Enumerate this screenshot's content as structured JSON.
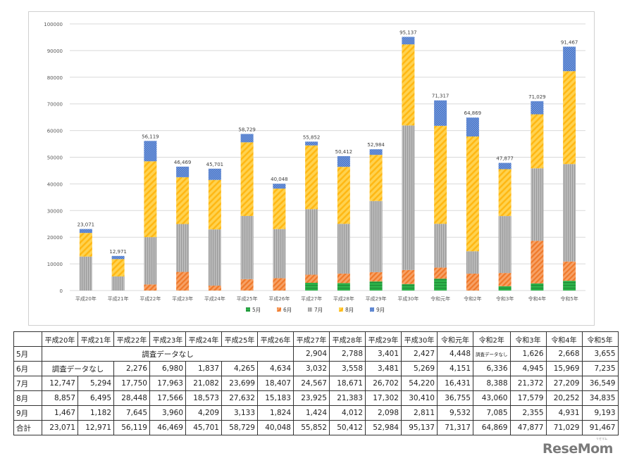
{
  "chart_data": {
    "type": "bar",
    "stacked": true,
    "categories": [
      "平成20年",
      "平成21年",
      "平成22年",
      "平成23年",
      "平成24年",
      "平成25年",
      "平成26年",
      "平成27年",
      "平成28年",
      "平成29年",
      "平成30年",
      "令和元年",
      "令和2年",
      "令和3年",
      "令和4年",
      "令和5年"
    ],
    "series": [
      {
        "name": "5月",
        "color": "#2db34a",
        "values": [
          0,
          0,
          0,
          0,
          0,
          0,
          0,
          2904,
          2788,
          3401,
          2427,
          4448,
          0,
          1626,
          2668,
          3655
        ]
      },
      {
        "name": "6月",
        "color": "#f4883c",
        "values": [
          0,
          0,
          2276,
          6980,
          1837,
          4265,
          4634,
          3032,
          3558,
          3481,
          5269,
          4151,
          6336,
          4945,
          15969,
          7235
        ]
      },
      {
        "name": "7月",
        "color": "#a6a6a6",
        "values": [
          12747,
          5294,
          17750,
          17963,
          21082,
          23699,
          18407,
          24567,
          18671,
          26702,
          54220,
          16431,
          8388,
          21372,
          27209,
          36549
        ]
      },
      {
        "name": "8月",
        "color": "#ffc22a",
        "values": [
          8857,
          6495,
          28448,
          17566,
          18573,
          27632,
          15183,
          23925,
          21383,
          17302,
          30410,
          36755,
          43060,
          17579,
          20252,
          34835
        ]
      },
      {
        "name": "9月",
        "color": "#5b86d4",
        "values": [
          1467,
          1182,
          7645,
          3960,
          4209,
          3133,
          1824,
          1424,
          4012,
          2098,
          2811,
          9532,
          7085,
          2355,
          4931,
          9193
        ]
      }
    ],
    "totals": [
      "23,071",
      "12,971",
      "56,119",
      "46,469",
      "45,701",
      "58,729",
      "40,048",
      "55,852",
      "50,412",
      "52,984",
      "95,137",
      "71,317",
      "64,869",
      "47,877",
      "71,029",
      "91,467"
    ],
    "yticks": [
      "0",
      "10000",
      "20000",
      "30000",
      "40000",
      "50000",
      "60000",
      "70000",
      "80000",
      "90000",
      "100000"
    ],
    "ylim": [
      0,
      100000
    ],
    "legend": [
      "5月",
      "6月",
      "7月",
      "8月",
      "9月"
    ],
    "legend_position": "bottom"
  },
  "table": {
    "corner": "",
    "headers": [
      "平成20年",
      "平成21年",
      "平成22年",
      "平成23年",
      "平成24年",
      "平成25年",
      "平成26年",
      "平成27年",
      "平成28年",
      "平成29年",
      "平成30年",
      "令和元年",
      "令和2年",
      "令和3年",
      "令和4年",
      "令和5年"
    ],
    "no_data_label": "調査データなし",
    "rows": [
      {
        "label": "5月",
        "no_data_span": 7,
        "cells": [
          "2,904",
          "2,788",
          "3,401",
          "2,427",
          "4,448",
          "調査データなし",
          "1,626",
          "2,668",
          "3,655"
        ]
      },
      {
        "label": "6月",
        "no_data_span": 2,
        "cells": [
          "2,276",
          "6,980",
          "1,837",
          "4,265",
          "4,634",
          "3,032",
          "3,558",
          "3,481",
          "5,269",
          "4,151",
          "6,336",
          "4,945",
          "15,969",
          "7,235"
        ]
      },
      {
        "label": "7月",
        "no_data_span": 0,
        "cells": [
          "12,747",
          "5,294",
          "17,750",
          "17,963",
          "21,082",
          "23,699",
          "18,407",
          "24,567",
          "18,671",
          "26,702",
          "54,220",
          "16,431",
          "8,388",
          "21,372",
          "27,209",
          "36,549"
        ]
      },
      {
        "label": "8月",
        "no_data_span": 0,
        "cells": [
          "8,857",
          "6,495",
          "28,448",
          "17,566",
          "18,573",
          "27,632",
          "15,183",
          "23,925",
          "21,383",
          "17,302",
          "30,410",
          "36,755",
          "43,060",
          "17,579",
          "20,252",
          "34,835"
        ]
      },
      {
        "label": "9月",
        "no_data_span": 0,
        "cells": [
          "1,467",
          "1,182",
          "7,645",
          "3,960",
          "4,209",
          "3,133",
          "1,824",
          "1,424",
          "4,012",
          "2,098",
          "2,811",
          "9,532",
          "7,085",
          "2,355",
          "4,931",
          "9,193"
        ]
      },
      {
        "label": "合計",
        "no_data_span": 0,
        "cells": [
          "23,071",
          "12,971",
          "56,119",
          "46,469",
          "45,701",
          "58,729",
          "40,048",
          "55,852",
          "50,412",
          "52,984",
          "95,137",
          "71,317",
          "64,869",
          "47,877",
          "71,029",
          "91,467"
        ]
      }
    ]
  },
  "brand": {
    "logo_text": "ReseMom",
    "ruby": "リセマム"
  }
}
